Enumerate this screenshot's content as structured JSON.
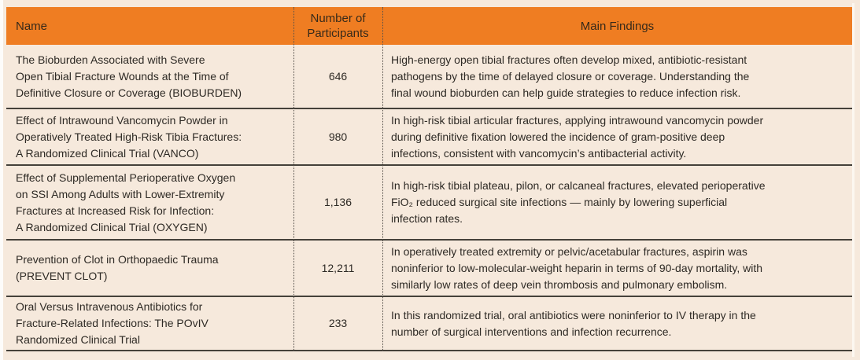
{
  "colors": {
    "header_orange": "#ef7d22",
    "background_cream": "#f6e9dc",
    "text_dark": "#2e2a25",
    "separator_line": "#45413a"
  },
  "table": {
    "columns": {
      "name": "Name",
      "participants": "Number of Participants",
      "findings": "Main Findings"
    },
    "rows": [
      {
        "name": "The Bioburden Associated with Severe\nOpen Tibial Fracture Wounds at the Time of\nDefinitive Closure or Coverage (BIOBURDEN)",
        "participants": "646",
        "findings": "High-energy open tibial fractures often develop mixed, antibiotic-resistant\npathogens by the time of delayed closure or coverage. Understanding the\nfinal wound bioburden can help guide strategies to reduce infection risk."
      },
      {
        "name": "Effect of Intrawound Vancomycin Powder in\nOperatively Treated High-Risk Tibia Fractures:\nA Randomized Clinical Trial (VANCO)",
        "participants": "980",
        "findings": "In high-risk tibial articular fractures, applying intrawound vancomycin powder\nduring definitive fixation lowered the incidence of gram-positive deep\ninfections, consistent with vancomycin’s antibacterial activity."
      },
      {
        "name": "Effect of Supplemental Perioperative Oxygen\non SSI Among Adults with Lower-Extremity\nFractures at Increased Risk for Infection:\nA Randomized Clinical Trial (OXYGEN)",
        "participants": "1,136",
        "findings": "In high-risk tibial plateau, pilon, or calcaneal fractures, elevated perioperative\nFiO₂ reduced surgical site infections — mainly by lowering superficial\ninfection rates."
      },
      {
        "name": "Prevention of Clot in Orthopaedic Trauma\n(PREVENT CLOT)",
        "participants": "12,211",
        "findings": "In operatively treated extremity or pelvic/acetabular fractures, aspirin was\nnoninferior to low-molecular-weight heparin in terms of 90-day mortality, with\nsimilarly low rates of deep vein thrombosis and pulmonary embolism."
      },
      {
        "name": "Oral Versus Intravenous Antibiotics for\nFracture-Related Infections: The POvIV\nRandomized Clinical Trial",
        "participants": "233",
        "findings": "In this randomized trial, oral antibiotics were noninferior to IV therapy in the\nnumber of surgical interventions and infection recurrence."
      }
    ]
  }
}
